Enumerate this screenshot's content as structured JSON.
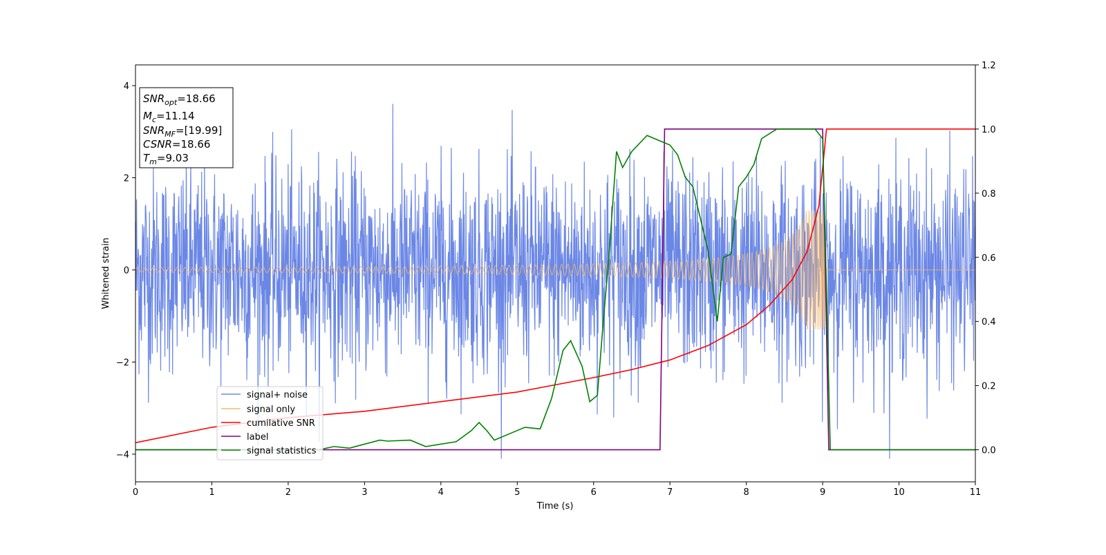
{
  "chart_data": {
    "type": "line",
    "xlabel": "Time (s)",
    "ylabel": "Whitened strain",
    "xlim": [
      0,
      11
    ],
    "ylim": [
      -4.6,
      4.45
    ],
    "y2lim": [
      -0.1,
      1.2
    ],
    "xticks": [
      0,
      1,
      2,
      3,
      4,
      5,
      6,
      7,
      8,
      9,
      10,
      11
    ],
    "yticks": [
      -4,
      -2,
      0,
      2,
      4
    ],
    "y2ticks": [
      "0.0",
      "0.2",
      "0.4",
      "0.6",
      "0.8",
      "1.0",
      "1.2"
    ],
    "y2tick_values": [
      0.0,
      0.2,
      0.4,
      0.6,
      0.8,
      1.0,
      1.2
    ],
    "legend_position": "lower-left",
    "info_box": {
      "position": "top-left",
      "snr_opt": {
        "symbol": "SNR",
        "sub": "opt",
        "value": "=18.66"
      },
      "mc": {
        "symbol": "M",
        "sub": "c",
        "value": "=11.14"
      },
      "snr_mf": {
        "symbol": "SNR",
        "sub": "MF",
        "value": "=[19.99]"
      },
      "csnr": {
        "symbol": "CSNR",
        "value": "=18.66"
      },
      "tm": {
        "symbol": "T",
        "sub": "m",
        "value": "=9.03"
      }
    },
    "series": [
      {
        "name": "signal+ noise",
        "axis": "left",
        "color": "#6b87e6",
        "noise_std": 1.1,
        "t_start": 0,
        "t_end": 11
      },
      {
        "name": "signal only",
        "axis": "left",
        "color": "#f5b86b",
        "chirp_start_amplitude": 0.05,
        "chirp_merger_time": 9.03,
        "chirp_peak_amplitude": 1.3
      },
      {
        "name": "cumilative SNR",
        "axis": "right",
        "color": "#ff0000",
        "x": [
          0,
          1,
          2,
          3,
          4,
          5,
          6,
          6.5,
          7,
          7.5,
          8,
          8.3,
          8.6,
          8.8,
          8.95,
          9.03,
          9.05,
          11
        ],
        "y": [
          0.022,
          0.07,
          0.1,
          0.12,
          0.15,
          0.18,
          0.225,
          0.25,
          0.28,
          0.325,
          0.39,
          0.45,
          0.53,
          0.62,
          0.76,
          0.95,
          1.0,
          1.0
        ]
      },
      {
        "name": "label",
        "axis": "right",
        "color": "#800080",
        "x": [
          0,
          6.87,
          6.93,
          9.0,
          9.08,
          11
        ],
        "y": [
          0,
          0,
          1,
          1,
          0,
          0
        ]
      },
      {
        "name": "signal statistics",
        "axis": "right",
        "color": "#008000",
        "x": [
          0,
          2.4,
          2.6,
          2.8,
          3.2,
          3.3,
          3.6,
          3.8,
          4.2,
          4.4,
          4.5,
          4.6,
          4.7,
          4.9,
          5.1,
          5.3,
          5.45,
          5.6,
          5.7,
          5.85,
          5.95,
          6.05,
          6.12,
          6.2,
          6.3,
          6.38,
          6.5,
          6.7,
          6.9,
          7.0,
          7.1,
          7.2,
          7.3,
          7.4,
          7.5,
          7.62,
          7.7,
          7.8,
          7.9,
          8.0,
          8.1,
          8.2,
          8.4,
          8.7,
          8.9,
          9.0,
          9.05,
          9.1,
          11
        ],
        "y": [
          0.0,
          0.0,
          0.01,
          0.005,
          0.03,
          0.027,
          0.03,
          0.01,
          0.025,
          0.06,
          0.085,
          0.06,
          0.03,
          0.05,
          0.07,
          0.065,
          0.16,
          0.31,
          0.34,
          0.26,
          0.15,
          0.17,
          0.38,
          0.6,
          0.93,
          0.88,
          0.93,
          0.98,
          0.96,
          0.95,
          0.92,
          0.85,
          0.82,
          0.72,
          0.62,
          0.4,
          0.6,
          0.61,
          0.82,
          0.85,
          0.89,
          0.97,
          1.0,
          1.0,
          1.0,
          0.97,
          0.5,
          0.0,
          0.0
        ]
      }
    ]
  }
}
